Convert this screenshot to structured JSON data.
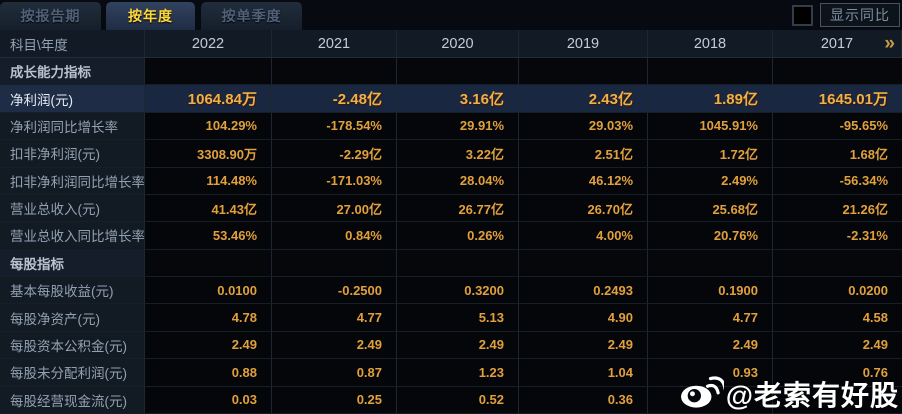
{
  "colors": {
    "accent_gold": "#e2a03c",
    "highlight_value": "#eeb14a",
    "highlight_row_bg": "#1a2740",
    "tab_active_text": "#ffd83a",
    "label_text": "#92a1b1"
  },
  "tabs": [
    {
      "label": "按报告期",
      "active": false
    },
    {
      "label": "按年度",
      "active": true
    },
    {
      "label": "按单季度",
      "active": false
    }
  ],
  "controls": {
    "show_yoy_label": "显示同比",
    "checkbox_checked": false
  },
  "table": {
    "corner_label": "科目\\年度",
    "years": [
      "2022",
      "2021",
      "2020",
      "2019",
      "2018",
      "2017"
    ],
    "more_years_icon": "»",
    "rows": [
      {
        "type": "section",
        "label": "成长能力指标",
        "values": [
          "",
          "",
          "",
          "",
          "",
          ""
        ]
      },
      {
        "type": "data",
        "highlight": true,
        "label": "净利润(元)",
        "values": [
          "1064.84万",
          "-2.48亿",
          "3.16亿",
          "2.43亿",
          "1.89亿",
          "1645.01万"
        ]
      },
      {
        "type": "data",
        "label": "净利润同比增长率",
        "values": [
          "104.29%",
          "-178.54%",
          "29.91%",
          "29.03%",
          "1045.91%",
          "-95.65%"
        ]
      },
      {
        "type": "data",
        "label": "扣非净利润(元)",
        "values": [
          "3308.90万",
          "-2.29亿",
          "3.22亿",
          "2.51亿",
          "1.72亿",
          "1.68亿"
        ]
      },
      {
        "type": "data",
        "label": "扣非净利润同比增长率",
        "values": [
          "114.48%",
          "-171.03%",
          "28.04%",
          "46.12%",
          "2.49%",
          "-56.34%"
        ]
      },
      {
        "type": "data",
        "label": "营业总收入(元)",
        "values": [
          "41.43亿",
          "27.00亿",
          "26.77亿",
          "26.70亿",
          "25.68亿",
          "21.26亿"
        ]
      },
      {
        "type": "data",
        "label": "营业总收入同比增长率",
        "values": [
          "53.46%",
          "0.84%",
          "0.26%",
          "4.00%",
          "20.76%",
          "-2.31%"
        ]
      },
      {
        "type": "section",
        "label": "每股指标",
        "values": [
          "",
          "",
          "",
          "",
          "",
          ""
        ]
      },
      {
        "type": "data",
        "label": "基本每股收益(元)",
        "values": [
          "0.0100",
          "-0.2500",
          "0.3200",
          "0.2493",
          "0.1900",
          "0.0200"
        ]
      },
      {
        "type": "data",
        "label": "每股净资产(元)",
        "values": [
          "4.78",
          "4.77",
          "5.13",
          "4.90",
          "4.77",
          "4.58"
        ]
      },
      {
        "type": "data",
        "label": "每股资本公积金(元)",
        "values": [
          "2.49",
          "2.49",
          "2.49",
          "2.49",
          "2.49",
          "2.49"
        ]
      },
      {
        "type": "data",
        "label": "每股未分配利润(元)",
        "values": [
          "0.88",
          "0.87",
          "1.23",
          "1.04",
          "0.93",
          "0.76"
        ]
      },
      {
        "type": "data",
        "label": "每股经营现金流(元)",
        "values": [
          "0.03",
          "0.25",
          "0.52",
          "0.36",
          "",
          ""
        ]
      }
    ]
  },
  "watermark": {
    "icon": "weibo-icon",
    "text": "@老索有好股"
  }
}
